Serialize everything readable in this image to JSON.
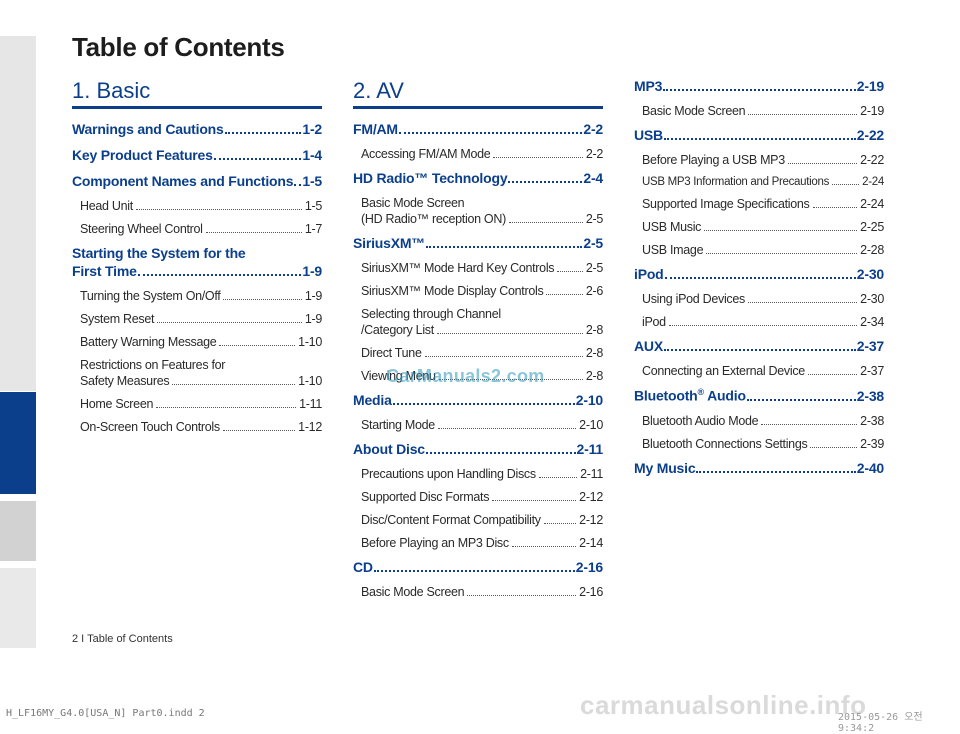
{
  "title": "Table of Contents",
  "col1": {
    "chapter": "1. Basic",
    "s1": {
      "title": "Warnings and Cautions",
      "page": "1-2"
    },
    "s2": {
      "title": "Key Product Features",
      "page": "1-4"
    },
    "s3": {
      "title": "Component Names and Functions",
      "page": "1-5"
    },
    "s3_items": [
      {
        "title": "Head Unit",
        "page": "1-5"
      },
      {
        "title": "Steering Wheel Control",
        "page": "1-7"
      }
    ],
    "s4": {
      "title_line1": "Starting the System for the",
      "title_line2": "First Time",
      "page": "1-9"
    },
    "s4_items": [
      {
        "title": "Turning the System On/Off",
        "page": "1-9"
      },
      {
        "title": "System Reset",
        "page": "1-9"
      },
      {
        "title": "Battery Warning Message",
        "page": "1-10"
      },
      {
        "title_line1": "Restrictions on Features for",
        "title_line2": "Safety Measures",
        "page": "1-10"
      },
      {
        "title": "Home Screen",
        "page": "1-11"
      },
      {
        "title": "On-Screen Touch Controls",
        "page": "1-12"
      }
    ]
  },
  "col2": {
    "chapter": "2. AV",
    "s1": {
      "title": "FM/AM",
      "page": "2-2"
    },
    "s1_items": [
      {
        "title": "Accessing FM/AM Mode",
        "page": "2-2"
      }
    ],
    "s2": {
      "title": "HD Radio™ Technology",
      "page": "2-4"
    },
    "s2_items": [
      {
        "title_line1": "Basic Mode Screen",
        "title_line2": "(HD Radio™  reception ON)",
        "page": "2-5"
      }
    ],
    "s3": {
      "title": "SiriusXM™",
      "page": "2-5"
    },
    "s3_items": [
      {
        "title": "SiriusXM™ Mode Hard Key Controls",
        "page": "2-5"
      },
      {
        "title": "SiriusXM™  Mode Display Controls",
        "page": "2-6"
      },
      {
        "title_line1": "Selecting through Channel",
        "title_line2": "/Category List",
        "page": "2-8"
      },
      {
        "title": "Direct Tune",
        "page": "2-8"
      },
      {
        "title": "Viewing Menu",
        "page": "2-8"
      }
    ],
    "s4": {
      "title": "Media",
      "page": "2-10"
    },
    "s4_items": [
      {
        "title": "Starting Mode",
        "page": "2-10"
      }
    ],
    "s5": {
      "title": "About Disc",
      "page": "2-11"
    },
    "s5_items": [
      {
        "title": "Precautions upon Handling Discs",
        "page": "2-11"
      },
      {
        "title": "Supported Disc Formats",
        "page": "2-12"
      },
      {
        "title": "Disc/Content Format Compatibility",
        "page": "2-12"
      },
      {
        "title": "Before Playing an MP3 Disc",
        "page": "2-14"
      }
    ],
    "s6": {
      "title": "CD",
      "page": "2-16"
    },
    "s6_items": [
      {
        "title": "Basic Mode Screen",
        "page": "2-16"
      }
    ]
  },
  "col3": {
    "s1": {
      "title": "MP3",
      "page": "2-19"
    },
    "s1_items": [
      {
        "title": "Basic Mode Screen",
        "page": "2-19"
      }
    ],
    "s2": {
      "title": "USB",
      "page": "2-22"
    },
    "s2_items": [
      {
        "title": "Before Playing a USB MP3",
        "page": "2-22"
      },
      {
        "title": "USB MP3 Information and Precautions",
        "page": "2-24"
      },
      {
        "title": "Supported Image Specifications",
        "page": "2-24"
      },
      {
        "title": "USB Music",
        "page": "2-25"
      },
      {
        "title": "USB Image",
        "page": "2-28"
      }
    ],
    "s3": {
      "title": "iPod",
      "page": "2-30"
    },
    "s3_items": [
      {
        "title": "Using iPod Devices",
        "page": "2-30"
      },
      {
        "title": "iPod",
        "page": "2-34"
      }
    ],
    "s4": {
      "title": "AUX",
      "page": "2-37"
    },
    "s4_items": [
      {
        "title": "Connecting an External Device",
        "page": "2-37"
      }
    ],
    "s5": {
      "title": "Bluetooth",
      "title_sup": "®",
      "title_tail": " Audio",
      "page": "2-38"
    },
    "s5_items": [
      {
        "title": "Bluetooth Audio Mode",
        "page": "2-38"
      },
      {
        "title": "Bluetooth Connections Settings",
        "page": "2-39"
      }
    ],
    "s6": {
      "title": "My Music",
      "page": "2-40"
    }
  },
  "watermark": "CarManuals2.com",
  "footer": "2 I Table of Contents",
  "slug_left": "H_LF16MY_G4.0[USA_N] Part0.indd   2",
  "slug_right": "2015-05-26  오전 9:34:2",
  "site_watermark": "carmanualsonline.info"
}
